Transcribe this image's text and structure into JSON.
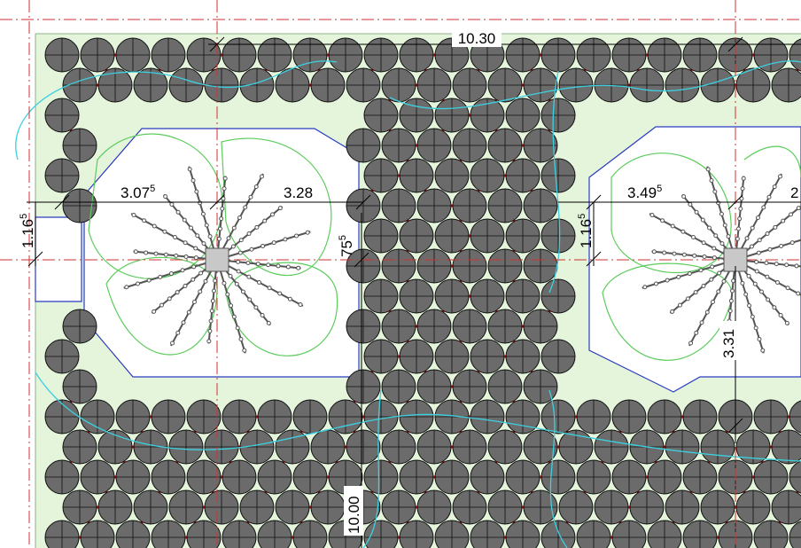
{
  "dimensions": [
    {
      "text": "10.30"
    },
    {
      "text": "3.07",
      "sup": "5"
    },
    {
      "text": "3.28"
    },
    {
      "text": "1.16",
      "sup": "5"
    },
    {
      "text": "75",
      "sup": "5"
    },
    {
      "text": "1.16",
      "sup": "5"
    },
    {
      "text": "3.49",
      "sup": "5"
    },
    {
      "text": "2"
    },
    {
      "text": "3.31"
    },
    {
      "text": "10.00"
    }
  ]
}
